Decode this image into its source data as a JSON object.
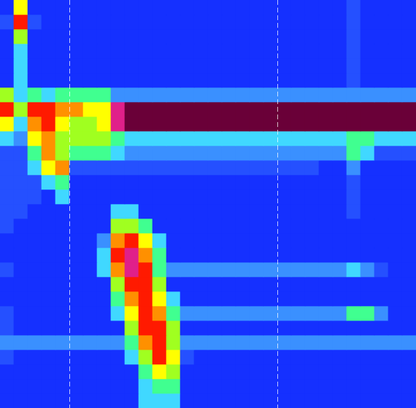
{
  "chart_data": {
    "type": "heatmap",
    "tick_labels": false,
    "xlim": [
      0,
      30
    ],
    "ylim": [
      0,
      28
    ],
    "color_range": [
      0,
      10
    ],
    "vertical_lines": [
      5,
      20
    ],
    "cells": [
      [
        0,
        6,
        0,
        0,
        0,
        0,
        0,
        0,
        0,
        0,
        0,
        0,
        0,
        0,
        0,
        0,
        0,
        0,
        0,
        0,
        0,
        0,
        0,
        0,
        0,
        1,
        0,
        0,
        0,
        0
      ],
      [
        1,
        8,
        1,
        0,
        0,
        0,
        0,
        0,
        0,
        0,
        0,
        0,
        0,
        0,
        0,
        0,
        0,
        0,
        0,
        0,
        0,
        0,
        0,
        0,
        0,
        1,
        0,
        0,
        0,
        0
      ],
      [
        0,
        5,
        0,
        0,
        0,
        0,
        0,
        0,
        0,
        0,
        0,
        0,
        0,
        0,
        0,
        0,
        0,
        0,
        0,
        0,
        0,
        0,
        0,
        0,
        0,
        1,
        0,
        0,
        0,
        0
      ],
      [
        0,
        3,
        0,
        0,
        0,
        0,
        0,
        0,
        0,
        0,
        0,
        0,
        0,
        0,
        0,
        0,
        0,
        0,
        0,
        0,
        0,
        0,
        0,
        0,
        0,
        1,
        0,
        0,
        0,
        0
      ],
      [
        0,
        3,
        0,
        0,
        0,
        0,
        0,
        0,
        0,
        0,
        0,
        0,
        0,
        0,
        0,
        0,
        0,
        0,
        0,
        0,
        0,
        0,
        0,
        0,
        0,
        1,
        0,
        0,
        0,
        0
      ],
      [
        0,
        3,
        0,
        0,
        0,
        0,
        0,
        0,
        0,
        0,
        0,
        0,
        0,
        0,
        0,
        0,
        0,
        0,
        0,
        0,
        0,
        0,
        0,
        0,
        0,
        1,
        0,
        0,
        0,
        0
      ],
      [
        5,
        3,
        4,
        3,
        4,
        4,
        4,
        4,
        2,
        2,
        2,
        2,
        2,
        2,
        2,
        2,
        2,
        2,
        2,
        2,
        2,
        2,
        2,
        2,
        2,
        2,
        2,
        2,
        2,
        2
      ],
      [
        8,
        5,
        8,
        8,
        7,
        7,
        6,
        6,
        9,
        10,
        10,
        10,
        10,
        10,
        10,
        10,
        10,
        10,
        10,
        10,
        10,
        10,
        10,
        10,
        10,
        10,
        10,
        10,
        10,
        10
      ],
      [
        6,
        3,
        7,
        8,
        6,
        5,
        5,
        6,
        9,
        10,
        10,
        10,
        10,
        10,
        10,
        10,
        10,
        10,
        10,
        10,
        10,
        10,
        10,
        10,
        10,
        10,
        10,
        10,
        10,
        10
      ],
      [
        3,
        2,
        6,
        7,
        5,
        5,
        5,
        5,
        4,
        3,
        3,
        3,
        3,
        3,
        3,
        3,
        3,
        3,
        3,
        3,
        3,
        3,
        3,
        3,
        3,
        4,
        4,
        3,
        3,
        3
      ],
      [
        1,
        1,
        4,
        7,
        5,
        4,
        4,
        4,
        3,
        2,
        2,
        2,
        2,
        2,
        2,
        2,
        2,
        2,
        2,
        2,
        2,
        2,
        2,
        2,
        2,
        4,
        3,
        1,
        1,
        1
      ],
      [
        1,
        1,
        3,
        6,
        7,
        1,
        1,
        1,
        1,
        1,
        1,
        1,
        1,
        1,
        1,
        1,
        1,
        1,
        1,
        1,
        1,
        1,
        1,
        0,
        0,
        2,
        0,
        0,
        0,
        0
      ],
      [
        1,
        1,
        1,
        3,
        4,
        0,
        0,
        0,
        0,
        0,
        0,
        0,
        0,
        0,
        0,
        0,
        0,
        0,
        0,
        0,
        0,
        0,
        0,
        0,
        0,
        1,
        0,
        0,
        0,
        0
      ],
      [
        1,
        1,
        1,
        0,
        3,
        0,
        0,
        0,
        0,
        0,
        0,
        0,
        0,
        0,
        0,
        0,
        0,
        0,
        0,
        0,
        0,
        0,
        0,
        0,
        0,
        1,
        0,
        0,
        0,
        0
      ],
      [
        1,
        1,
        0,
        0,
        0,
        0,
        0,
        0,
        3,
        3,
        0,
        0,
        0,
        0,
        0,
        0,
        0,
        0,
        0,
        0,
        0,
        0,
        0,
        0,
        0,
        1,
        0,
        0,
        0,
        0
      ],
      [
        1,
        0,
        0,
        0,
        0,
        0,
        0,
        0,
        5,
        5,
        4,
        0,
        0,
        0,
        0,
        0,
        0,
        0,
        0,
        0,
        0,
        0,
        0,
        0,
        0,
        0,
        0,
        0,
        0,
        0
      ],
      [
        0,
        0,
        0,
        0,
        0,
        0,
        0,
        2,
        7,
        8,
        6,
        3,
        0,
        0,
        0,
        0,
        0,
        0,
        0,
        0,
        0,
        0,
        0,
        0,
        0,
        0,
        0,
        0,
        0,
        0
      ],
      [
        0,
        0,
        0,
        0,
        0,
        0,
        0,
        3,
        8,
        9,
        7,
        4,
        0,
        0,
        0,
        0,
        0,
        0,
        0,
        0,
        0,
        0,
        0,
        0,
        0,
        0,
        0,
        0,
        0,
        0
      ],
      [
        1,
        0,
        0,
        0,
        0,
        0,
        0,
        3,
        7,
        9,
        8,
        4,
        2,
        2,
        2,
        2,
        2,
        2,
        2,
        2,
        2,
        2,
        2,
        2,
        2,
        3,
        2,
        1,
        0,
        0
      ],
      [
        0,
        0,
        0,
        0,
        0,
        0,
        0,
        0,
        5,
        8,
        8,
        5,
        0,
        0,
        0,
        0,
        0,
        0,
        0,
        0,
        0,
        0,
        0,
        0,
        0,
        0,
        0,
        0,
        0,
        0
      ],
      [
        0,
        0,
        0,
        0,
        0,
        0,
        0,
        0,
        4,
        7,
        8,
        6,
        3,
        0,
        0,
        0,
        0,
        0,
        0,
        0,
        0,
        0,
        0,
        0,
        0,
        0,
        0,
        0,
        0,
        0
      ],
      [
        1,
        0,
        0,
        0,
        0,
        0,
        0,
        0,
        3,
        6,
        8,
        7,
        4,
        2,
        2,
        2,
        2,
        2,
        2,
        2,
        2,
        2,
        2,
        2,
        2,
        4,
        4,
        2,
        0,
        0
      ],
      [
        1,
        0,
        0,
        0,
        0,
        0,
        0,
        0,
        0,
        5,
        8,
        8,
        5,
        0,
        0,
        0,
        0,
        0,
        0,
        0,
        0,
        0,
        0,
        0,
        0,
        0,
        0,
        0,
        0,
        0
      ],
      [
        2,
        2,
        2,
        2,
        2,
        2,
        2,
        2,
        2,
        4,
        7,
        8,
        5,
        2,
        2,
        2,
        2,
        2,
        2,
        2,
        2,
        2,
        2,
        2,
        2,
        2,
        2,
        2,
        2,
        2
      ],
      [
        1,
        0,
        0,
        0,
        0,
        0,
        0,
        0,
        0,
        3,
        5,
        8,
        6,
        1,
        0,
        0,
        0,
        0,
        0,
        0,
        0,
        0,
        0,
        0,
        0,
        0,
        0,
        0,
        0,
        0
      ],
      [
        0,
        0,
        0,
        0,
        0,
        0,
        0,
        0,
        0,
        0,
        4,
        6,
        5,
        0,
        0,
        0,
        0,
        0,
        0,
        0,
        0,
        0,
        0,
        0,
        0,
        0,
        0,
        0,
        0,
        0
      ],
      [
        0,
        0,
        0,
        0,
        0,
        0,
        0,
        0,
        0,
        0,
        3,
        4,
        4,
        0,
        0,
        0,
        0,
        0,
        0,
        0,
        0,
        0,
        0,
        0,
        0,
        0,
        0,
        0,
        0,
        0
      ],
      [
        0,
        0,
        0,
        0,
        0,
        0,
        0,
        0,
        0,
        0,
        3,
        3,
        3,
        0,
        0,
        0,
        0,
        0,
        0,
        0,
        0,
        0,
        0,
        0,
        0,
        0,
        0,
        0,
        0,
        0
      ]
    ]
  }
}
